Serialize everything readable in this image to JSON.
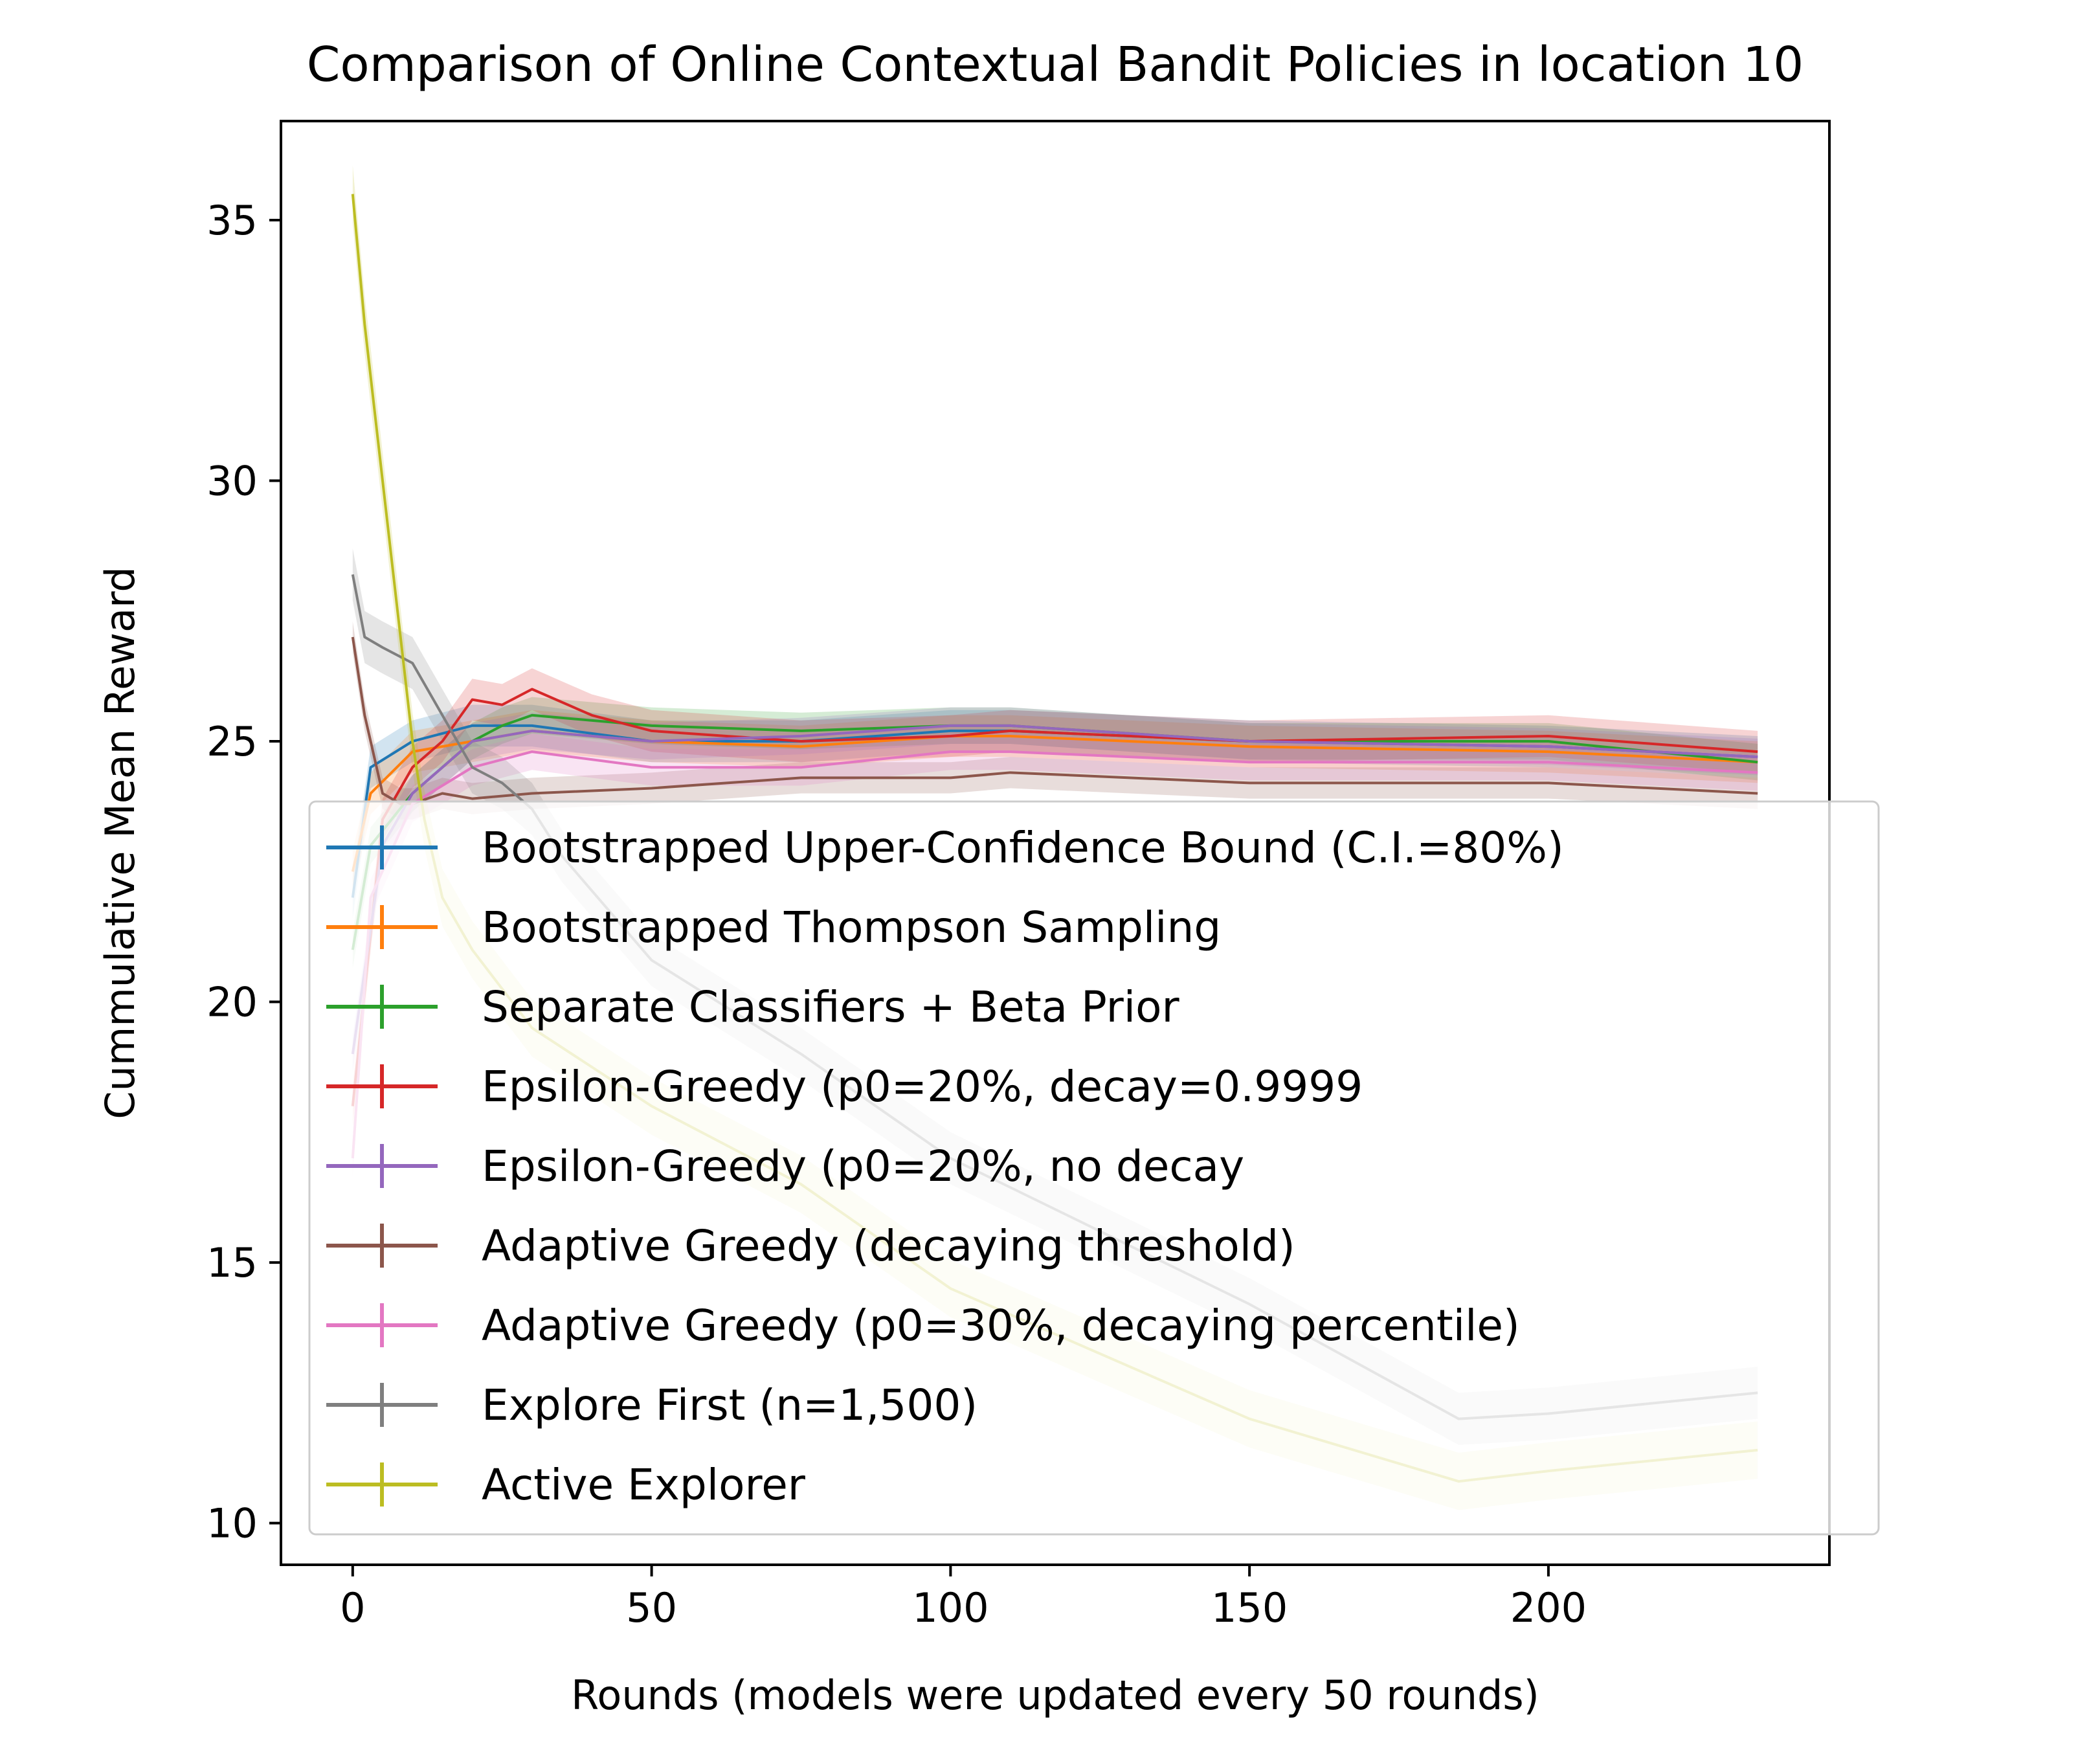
{
  "chart_data": {
    "type": "line",
    "title": "Comparison of Online Contextual Bandit Policies in location 10",
    "xlabel": "Rounds (models were updated every 50 rounds)",
    "ylabel": "Cummulative Mean Reward",
    "xlim": [
      -12,
      247
    ],
    "ylim": [
      9.2,
      36.9
    ],
    "xticks": [
      0,
      50,
      100,
      150,
      200
    ],
    "yticks": [
      10,
      15,
      20,
      25,
      30,
      35
    ],
    "grid": false,
    "legend_position": "lower-center",
    "series": [
      {
        "name": "Bootstrapped Upper-Confidence Bound (C.I.=80%)",
        "color": "#1f77b4",
        "x": [
          0,
          3,
          10,
          20,
          30,
          50,
          75,
          100,
          110,
          150,
          200,
          235
        ],
        "y": [
          22.0,
          24.5,
          25.0,
          25.3,
          25.3,
          25.0,
          25.0,
          25.2,
          25.2,
          25.0,
          24.9,
          24.7
        ],
        "band": 0.4
      },
      {
        "name": "Bootstrapped Thompson Sampling",
        "color": "#ff7f0e",
        "x": [
          0,
          3,
          10,
          20,
          30,
          50,
          75,
          100,
          110,
          150,
          200,
          235
        ],
        "y": [
          22.5,
          24.0,
          24.8,
          25.0,
          25.2,
          25.0,
          24.9,
          25.1,
          25.1,
          24.9,
          24.8,
          24.6
        ],
        "band": 0.4
      },
      {
        "name": "Separate Classifiers + Beta Prior",
        "color": "#2ca02c",
        "x": [
          0,
          3,
          10,
          15,
          20,
          25,
          30,
          50,
          75,
          100,
          110,
          150,
          200,
          235
        ],
        "y": [
          21.0,
          23.0,
          24.0,
          24.5,
          25.0,
          25.3,
          25.5,
          25.3,
          25.2,
          25.3,
          25.3,
          25.0,
          25.0,
          24.6
        ],
        "band": 0.35
      },
      {
        "name": "Epsilon-Greedy (p0=20%, decay=0.9999",
        "color": "#d62728",
        "x": [
          0,
          5,
          10,
          15,
          20,
          25,
          30,
          40,
          50,
          75,
          100,
          110,
          150,
          200,
          235
        ],
        "y": [
          18.0,
          23.5,
          24.5,
          25.0,
          25.8,
          25.7,
          26.0,
          25.5,
          25.2,
          25.0,
          25.1,
          25.2,
          25.0,
          25.1,
          24.8
        ],
        "band": 0.4
      },
      {
        "name": "Epsilon-Greedy (p0=20%, no decay",
        "color": "#9467bd",
        "x": [
          0,
          5,
          10,
          20,
          30,
          50,
          75,
          100,
          110,
          150,
          200,
          235
        ],
        "y": [
          19.0,
          23.0,
          24.0,
          25.0,
          25.2,
          25.0,
          25.1,
          25.3,
          25.3,
          25.0,
          24.9,
          24.7
        ],
        "band": 0.35
      },
      {
        "name": "Adaptive Greedy (decaying threshold)",
        "color": "#8c564b",
        "x": [
          0,
          2,
          5,
          8,
          10,
          15,
          20,
          30,
          50,
          75,
          100,
          110,
          150,
          200,
          235
        ],
        "y": [
          27.0,
          25.5,
          24.0,
          23.8,
          23.8,
          24.0,
          23.9,
          24.0,
          24.1,
          24.3,
          24.3,
          24.4,
          24.2,
          24.2,
          24.0
        ],
        "band": 0.3
      },
      {
        "name": "Adaptive Greedy (p0=30%, decaying percentile)",
        "color": "#e377c2",
        "x": [
          0,
          3,
          10,
          20,
          30,
          50,
          75,
          100,
          110,
          150,
          200,
          235
        ],
        "y": [
          17.0,
          22.0,
          23.8,
          24.5,
          24.8,
          24.5,
          24.5,
          24.8,
          24.8,
          24.6,
          24.6,
          24.4
        ],
        "band": 0.35
      },
      {
        "name": "Explore First (n=1,500)",
        "color": "#7f7f7f",
        "x": [
          0,
          2,
          5,
          10,
          15,
          20,
          25,
          30,
          35,
          50,
          75,
          100,
          150,
          185,
          200,
          235
        ],
        "y": [
          28.2,
          27.0,
          26.8,
          26.5,
          25.5,
          24.5,
          24.2,
          23.7,
          22.8,
          20.8,
          19.0,
          17.0,
          14.2,
          12.0,
          12.1,
          12.5
        ],
        "band": 0.5
      },
      {
        "name": "Active Explorer",
        "color": "#bcbd22",
        "x": [
          0,
          2,
          5,
          8,
          10,
          12,
          15,
          20,
          30,
          50,
          75,
          100,
          150,
          185,
          200,
          235
        ],
        "y": [
          35.5,
          33.0,
          30.0,
          27.0,
          25.0,
          23.5,
          22.0,
          21.0,
          19.5,
          18.0,
          16.5,
          14.5,
          12.0,
          10.8,
          11.0,
          11.4
        ],
        "band": 0.55
      }
    ]
  }
}
